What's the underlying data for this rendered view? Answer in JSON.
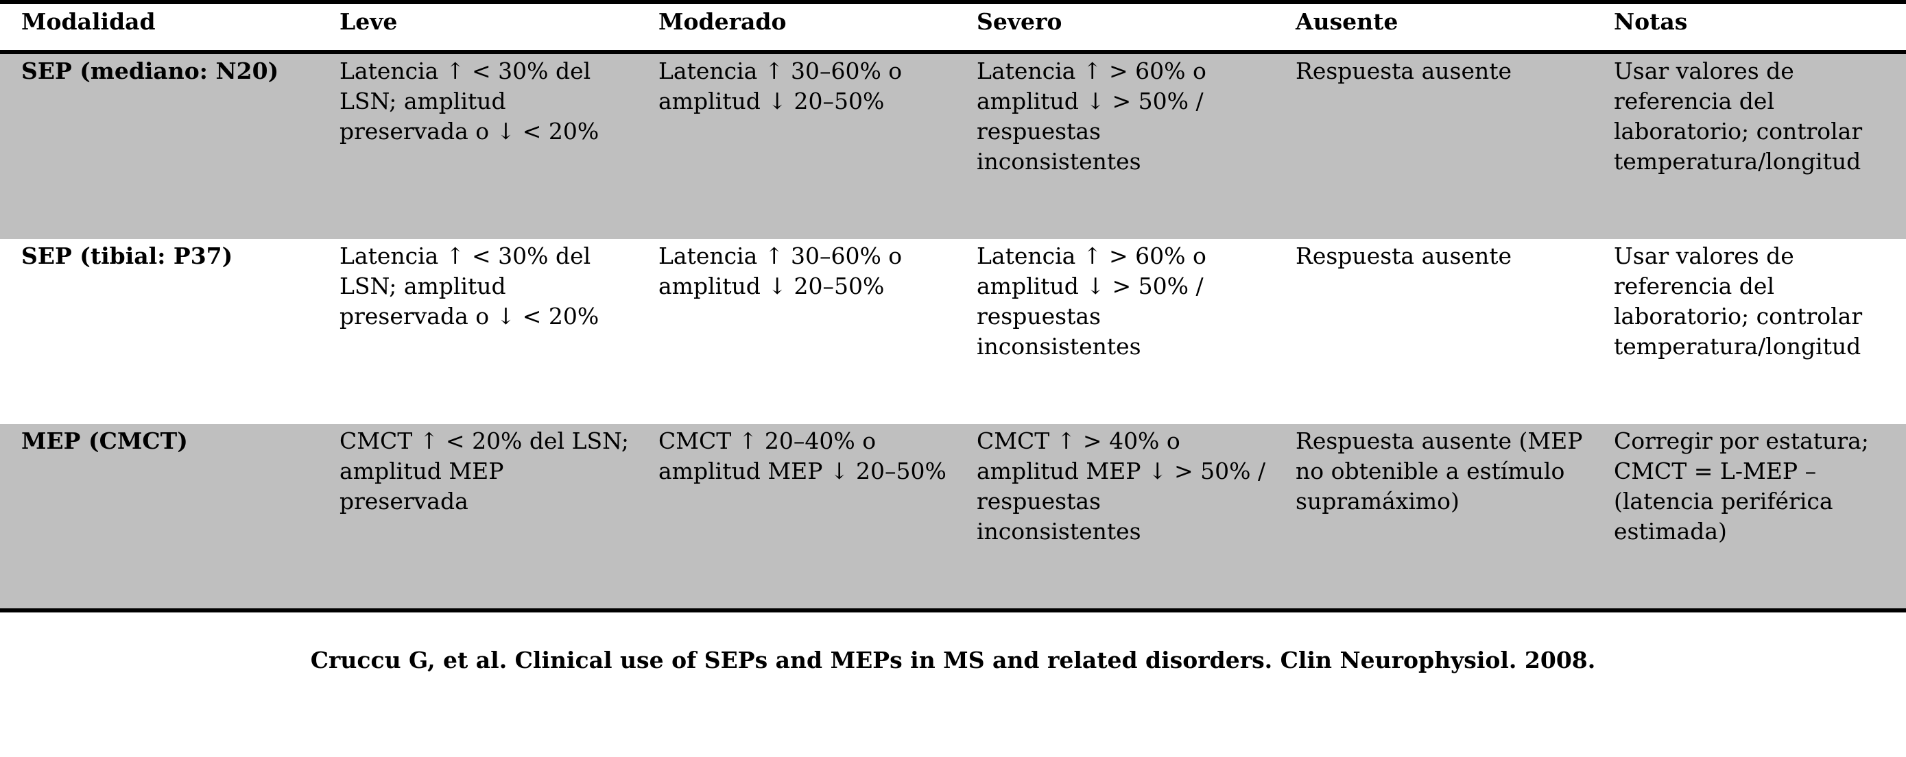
{
  "table": {
    "headers": [
      "Modalidad",
      "Leve",
      "Moderado",
      "Severo",
      "Ausente",
      "Notas"
    ],
    "rows": [
      {
        "modalidad": "SEP (mediano: N20)",
        "leve": "Latencia ↑ < 30% del\nLSN; amplitud\npreservada o ↓ < 20%",
        "moderado": "Latencia ↑ 30–60% o\namplitud ↓ 20–50%",
        "severo": "Latencia ↑ > 60% o\namplitud ↓ > 50% /\nrespuestas\ninconsistentes",
        "ausente": "Respuesta ausente",
        "notas": "Usar valores de\nreferencia del\nlaboratorio; controlar\ntemperatura/longitud"
      },
      {
        "modalidad": "SEP (tibial: P37)",
        "leve": "Latencia ↑ < 30% del\nLSN; amplitud\npreservada o ↓ < 20%",
        "moderado": "Latencia ↑ 30–60% o\namplitud ↓ 20–50%",
        "severo": "Latencia ↑ > 60% o\namplitud ↓ > 50% /\nrespuestas\ninconsistentes",
        "ausente": "Respuesta ausente",
        "notas": "Usar valores de\nreferencia del\nlaboratorio; controlar\ntemperatura/longitud"
      },
      {
        "modalidad": "MEP (CMCT)",
        "leve": "CMCT ↑ < 20% del LSN;\namplitud MEP\npreservada",
        "moderado": "CMCT ↑ 20–40% o\namplitud MEP ↓ 20–50%",
        "severo": "CMCT ↑ > 40% o\namplitud MEP ↓ > 50% /\nrespuestas\ninconsistentes",
        "ausente": "Respuesta ausente (MEP\nno obtenible a estímulo\nsupramáximo)",
        "notas": "Corregir por estatura;\nCMCT = L-MEP –\n(latencia periférica\nestimada)"
      }
    ],
    "row_shading": [
      "#bfbfbf",
      "#ffffff",
      "#bfbfbf"
    ]
  },
  "citation": "Cruccu G, et al. Clinical use of SEPs and MEPs in MS and related disorders. Clin Neurophysiol. 2008."
}
